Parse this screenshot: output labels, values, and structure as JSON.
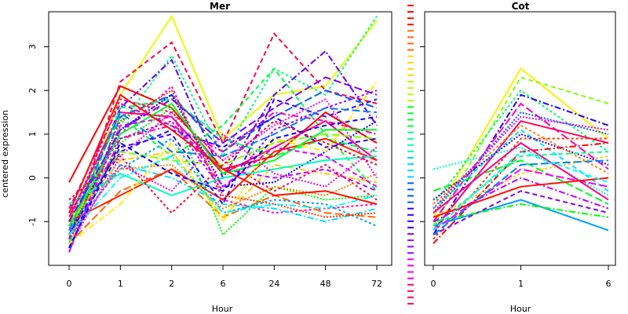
{
  "chart_data": [
    {
      "type": "line",
      "title": "Mer",
      "xlabel": "Hour",
      "ylabel": "centered expression",
      "categories": [
        "0",
        "1",
        "2",
        "6",
        "24",
        "48",
        "72"
      ],
      "yticks": [
        -1,
        0,
        1,
        2,
        3
      ],
      "ylim": [
        -2.0,
        3.8
      ],
      "grid": false,
      "legend": "none",
      "palette": [
        "#ff0000",
        "#ff6a00",
        "#ffd400",
        "#b8ff00",
        "#00ff2a",
        "#00ffa0",
        "#00d8ff",
        "#005bff",
        "#2a00ff",
        "#9a00ff",
        "#ff00d8",
        "#ff0068"
      ],
      "series": [
        {
          "values": [
            -1.6,
            1.9,
            3.7,
            0.9,
            1.9,
            2.1,
            3.6
          ],
          "color": "#e6ff00"
        },
        {
          "values": [
            -1.4,
            2.2,
            3.1,
            0.8,
            3.3,
            2.0,
            1.7
          ],
          "color": "#ff0044"
        },
        {
          "values": [
            -1.5,
            1.2,
            2.8,
            0.5,
            2.5,
            1.9,
            3.7
          ],
          "color": "#00ff80"
        },
        {
          "values": [
            -1.2,
            1.6,
            2.7,
            0.0,
            1.9,
            2.9,
            1.2
          ],
          "color": "#5a00ff"
        },
        {
          "values": [
            -1.7,
            1.4,
            1.9,
            0.6,
            1.4,
            2.0,
            1.6
          ],
          "color": "#0060ff"
        },
        {
          "values": [
            -1.6,
            0.5,
            1.5,
            0.4,
            1.2,
            1.8,
            0.0
          ],
          "color": "#ff00ff"
        },
        {
          "values": [
            -0.1,
            2.1,
            1.6,
            0.2,
            0.5,
            1.5,
            0.8
          ],
          "color": "#ff0000"
        },
        {
          "values": [
            -1.0,
            1.4,
            0.5,
            1.2,
            2.5,
            1.0,
            -0.3
          ],
          "color": "#00ff40"
        },
        {
          "values": [
            -1.3,
            1.0,
            2.1,
            -0.5,
            -0.8,
            -0.7,
            -0.6
          ],
          "color": "#ff00c0"
        },
        {
          "values": [
            -1.1,
            0.3,
            0.0,
            -0.6,
            -0.7,
            -1.0,
            -0.7
          ],
          "color": "#00e0ff"
        },
        {
          "values": [
            -1.5,
            -0.3,
            0.2,
            -0.9,
            -0.4,
            -0.8,
            -0.9
          ],
          "color": "#ff6a00"
        },
        {
          "values": [
            -1.2,
            0.8,
            1.6,
            -1.3,
            -0.2,
            -0.5,
            -0.4
          ],
          "color": "#00ff00"
        },
        {
          "values": [
            -0.9,
            1.5,
            1.4,
            0.1,
            0.7,
            1.3,
            0.4
          ],
          "color": "#ff0080"
        },
        {
          "values": [
            -1.4,
            0.6,
            1.1,
            0.7,
            1.4,
            0.7,
            0.9
          ],
          "color": "#2a00ff"
        },
        {
          "values": [
            -0.8,
            0.9,
            1.3,
            -0.3,
            1.1,
            1.6,
            2.0
          ],
          "color": "#a000ff"
        },
        {
          "values": [
            -1.0,
            0.4,
            0.6,
            -0.9,
            0.3,
            0.1,
            -0.1
          ],
          "color": "#ffcc00"
        },
        {
          "values": [
            -1.5,
            1.6,
            1.8,
            0.9,
            0.5,
            0.9,
            0.6
          ],
          "color": "#00ff60"
        },
        {
          "values": [
            -1.3,
            1.1,
            1.9,
            -0.2,
            -0.1,
            0.6,
            1.3
          ],
          "color": "#0000ff"
        },
        {
          "values": [
            -1.0,
            -0.4,
            0.2,
            -0.5,
            0.6,
            0.9,
            0.4
          ],
          "color": "#ff2000"
        },
        {
          "values": [
            -0.7,
            1.7,
            1.2,
            0.2,
            0.0,
            0.2,
            -0.3
          ],
          "color": "#c000ff"
        },
        {
          "values": [
            -1.2,
            0.2,
            0.9,
            -0.8,
            -0.5,
            -0.6,
            -1.1
          ],
          "color": "#00a0ff"
        },
        {
          "values": [
            -1.6,
            0.9,
            1.2,
            0.6,
            1.5,
            1.3,
            1.0
          ],
          "color": "#ff00a0"
        },
        {
          "values": [
            -1.1,
            0.6,
            0.4,
            0.3,
            0.8,
            1.0,
            0.9
          ],
          "color": "#80ff00"
        },
        {
          "values": [
            -1.4,
            1.3,
            2.0,
            -0.4,
            -0.6,
            -0.9,
            -0.8
          ],
          "color": "#ff3300"
        },
        {
          "values": [
            -0.6,
            0.1,
            -0.4,
            0.0,
            0.2,
            0.4,
            0.5
          ],
          "color": "#00ffc0"
        },
        {
          "values": [
            -1.3,
            0.7,
            1.0,
            -0.6,
            1.8,
            1.4,
            1.8
          ],
          "color": "#4000ff"
        },
        {
          "values": [
            -1.0,
            1.8,
            1.5,
            0.4,
            -0.3,
            0.3,
            -0.5
          ],
          "color": "#ff0060"
        },
        {
          "values": [
            -1.5,
            -0.6,
            0.8,
            -1.0,
            0.9,
            0.6,
            2.2
          ],
          "color": "#ffee00"
        },
        {
          "values": [
            -1.2,
            1.5,
            0.6,
            0.5,
            1.0,
            1.6,
            1.5
          ],
          "color": "#0080ff"
        },
        {
          "values": [
            -0.9,
            0.2,
            0.3,
            -0.7,
            -0.2,
            -0.4,
            0.1
          ],
          "color": "#ff8000"
        },
        {
          "values": [
            -1.1,
            1.0,
            1.7,
            0.1,
            0.4,
            1.1,
            1.1
          ],
          "color": "#00ff20"
        },
        {
          "values": [
            -1.7,
            1.2,
            1.4,
            -0.2,
            0.7,
            0.5,
            -0.2
          ],
          "color": "#e000ff"
        },
        {
          "values": [
            -0.5,
            0.5,
            -0.8,
            0.3,
            1.3,
            0.8,
            0.3
          ],
          "color": "#ff0030"
        },
        {
          "values": [
            -1.3,
            0.0,
            0.5,
            -0.8,
            -0.6,
            -0.7,
            -0.4
          ],
          "color": "#00ffff"
        },
        {
          "values": [
            -1.0,
            1.1,
            1.8,
            0.8,
            1.6,
            2.3,
            1.9
          ],
          "color": "#8000ff"
        },
        {
          "values": [
            -1.4,
            0.3,
            -0.3,
            1.0,
            0.1,
            -0.2,
            0.7
          ],
          "color": "#ff00e0"
        },
        {
          "values": [
            -0.8,
            1.9,
            1.1,
            0.2,
            -0.4,
            -0.3,
            -0.6
          ],
          "color": "#ff1000"
        },
        {
          "values": [
            -1.6,
            0.8,
            0.1,
            -0.3,
            0.9,
            1.2,
            1.4
          ],
          "color": "#1000ff"
        }
      ]
    },
    {
      "type": "line",
      "title": "Cot",
      "xlabel": "Hour",
      "categories": [
        "0",
        "1",
        "6"
      ],
      "ylim": [
        -2.0,
        3.8
      ],
      "grid": false,
      "legend": "none",
      "series": [
        {
          "values": [
            -0.9,
            2.5,
            0.9
          ],
          "color": "#ffee00"
        },
        {
          "values": [
            -1.1,
            2.3,
            1.7
          ],
          "color": "#80ff00"
        },
        {
          "values": [
            -0.6,
            2.0,
            0.6
          ],
          "color": "#00ff60"
        },
        {
          "values": [
            -1.3,
            1.9,
            1.2
          ],
          "color": "#2000ff"
        },
        {
          "values": [
            -1.0,
            1.7,
            0.2
          ],
          "color": "#ff00c0"
        },
        {
          "values": [
            -0.8,
            1.5,
            1.0
          ],
          "color": "#0060ff"
        },
        {
          "values": [
            -1.2,
            1.3,
            0.8
          ],
          "color": "#ff0060"
        },
        {
          "values": [
            -0.7,
            1.1,
            -0.3
          ],
          "color": "#00e0ff"
        },
        {
          "values": [
            -1.4,
            0.9,
            0.9
          ],
          "color": "#ff3300"
        },
        {
          "values": [
            -1.5,
            0.6,
            0.8
          ],
          "color": "#ff0000"
        },
        {
          "values": [
            -0.3,
            0.4,
            -0.6
          ],
          "color": "#00ff20"
        },
        {
          "values": [
            0.2,
            0.7,
            -0.4
          ],
          "color": "#00ffc0"
        },
        {
          "values": [
            -1.1,
            -0.5,
            -1.2
          ],
          "color": "#00a0ff"
        },
        {
          "values": [
            -1.3,
            -0.3,
            -0.8
          ],
          "color": "#8000ff"
        },
        {
          "values": [
            -0.9,
            0.1,
            0.5
          ],
          "color": "#ffcc00"
        },
        {
          "values": [
            -1.0,
            -0.6,
            -0.9
          ],
          "color": "#00ff00"
        },
        {
          "values": [
            -1.2,
            0.2,
            -0.2
          ],
          "color": "#ff00ff"
        },
        {
          "values": [
            -0.5,
            1.0,
            0.3
          ],
          "color": "#4000ff"
        },
        {
          "values": [
            -0.8,
            0.8,
            -0.5
          ],
          "color": "#ff0090"
        },
        {
          "values": [
            -1.1,
            0.5,
            0.6
          ],
          "color": "#00ff90"
        },
        {
          "values": [
            -0.6,
            1.2,
            0.1
          ],
          "color": "#ff8000"
        },
        {
          "values": [
            -1.0,
            0.0,
            -0.7
          ],
          "color": "#c000ff"
        },
        {
          "values": [
            -1.3,
            0.3,
            0.4
          ],
          "color": "#0080ff"
        },
        {
          "values": [
            -0.7,
            1.4,
            1.1
          ],
          "color": "#e000ff"
        },
        {
          "values": [
            -0.9,
            -0.2,
            0.0
          ],
          "color": "#ff1000"
        },
        {
          "values": [
            -1.2,
            0.6,
            -0.1
          ],
          "color": "#00ffff"
        }
      ]
    }
  ]
}
